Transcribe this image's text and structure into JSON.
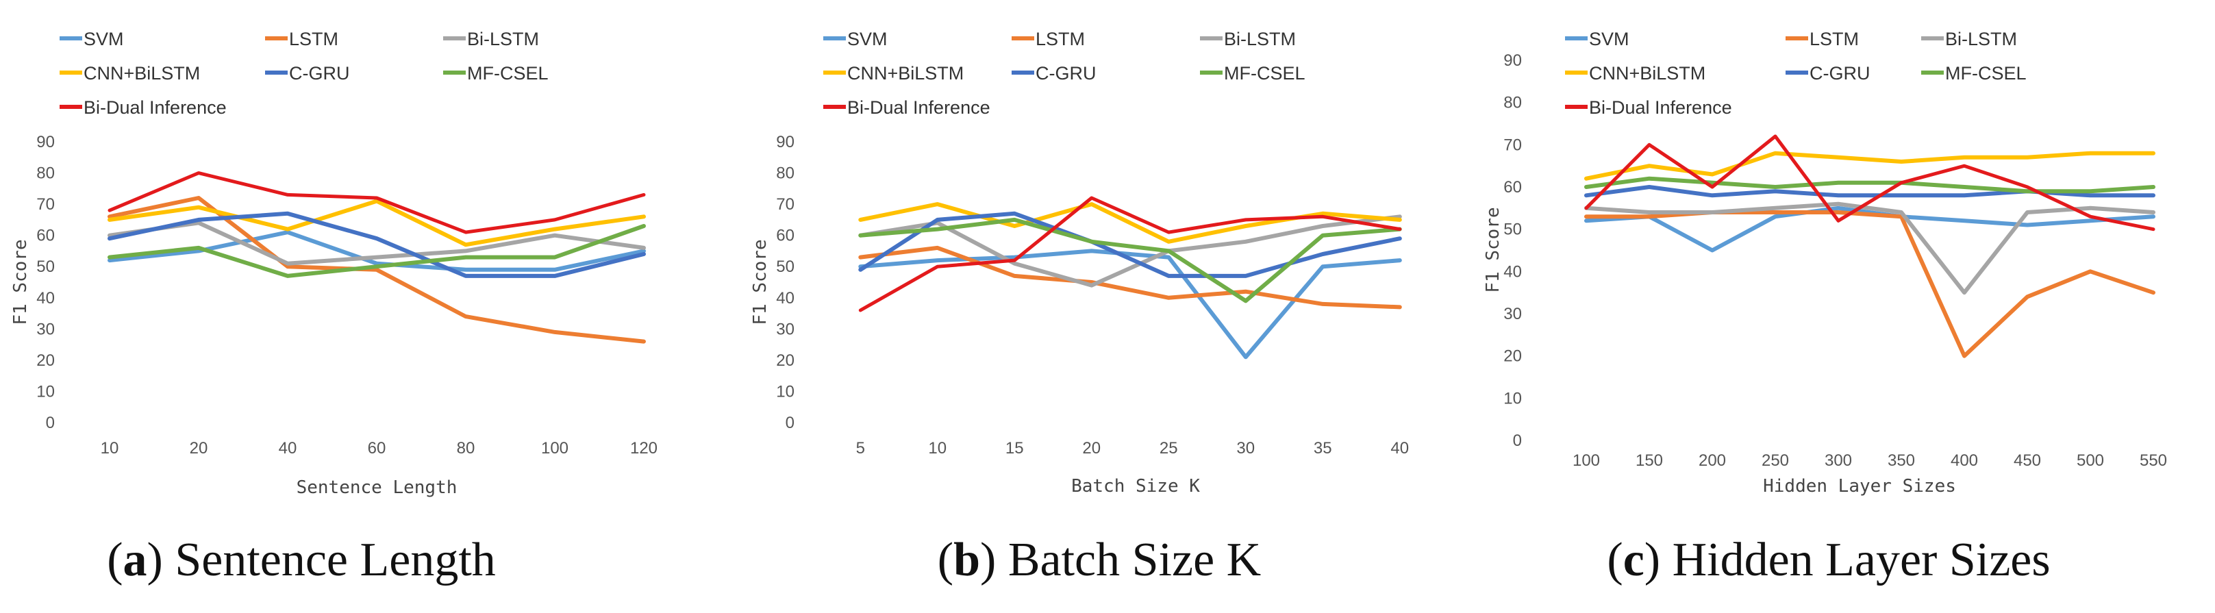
{
  "chart_data": [
    {
      "type": "line",
      "caption_letter": "a",
      "caption_text": "Sentence Length",
      "xlabel": "Sentence Length",
      "ylabel": "F1 Score",
      "ylim": [
        0,
        90
      ],
      "yticks": [
        0,
        10,
        20,
        30,
        40,
        50,
        60,
        70,
        80,
        90
      ],
      "categories": [
        "10",
        "20",
        "40",
        "60",
        "80",
        "100",
        "120"
      ],
      "grid": false,
      "series": [
        {
          "name": "SVM",
          "values": [
            52,
            55,
            61,
            51,
            49,
            49,
            55
          ]
        },
        {
          "name": "LSTM",
          "values": [
            66,
            72,
            50,
            49,
            34,
            29,
            26
          ]
        },
        {
          "name": "Bi-LSTM",
          "values": [
            60,
            64,
            51,
            53,
            55,
            60,
            56
          ]
        },
        {
          "name": "CNN+BiLSTM",
          "values": [
            65,
            69,
            62,
            71,
            57,
            62,
            66
          ]
        },
        {
          "name": "C-GRU",
          "values": [
            59,
            65,
            67,
            59,
            47,
            47,
            54
          ]
        },
        {
          "name": "MF-CSEL",
          "values": [
            53,
            56,
            47,
            50,
            53,
            53,
            63
          ]
        },
        {
          "name": "Bi-Dual Inference",
          "values": [
            68,
            80,
            73,
            72,
            61,
            65,
            73
          ]
        }
      ]
    },
    {
      "type": "line",
      "caption_letter": "b",
      "caption_text": "Batch Size K",
      "xlabel": "Batch Size K",
      "ylabel": "F1 Score",
      "ylim": [
        0,
        90
      ],
      "yticks": [
        0,
        10,
        20,
        30,
        40,
        50,
        60,
        70,
        80,
        90
      ],
      "categories": [
        "5",
        "10",
        "15",
        "20",
        "25",
        "30",
        "35",
        "40"
      ],
      "grid": false,
      "series": [
        {
          "name": "SVM",
          "values": [
            50,
            52,
            53,
            55,
            53,
            21,
            50,
            52
          ]
        },
        {
          "name": "LSTM",
          "values": [
            53,
            56,
            47,
            45,
            40,
            42,
            38,
            37
          ]
        },
        {
          "name": "Bi-LSTM",
          "values": [
            60,
            64,
            51,
            44,
            55,
            58,
            63,
            66
          ]
        },
        {
          "name": "CNN+BiLSTM",
          "values": [
            65,
            70,
            63,
            70,
            58,
            63,
            67,
            65
          ]
        },
        {
          "name": "C-GRU",
          "values": [
            49,
            65,
            67,
            58,
            47,
            47,
            54,
            59
          ]
        },
        {
          "name": "MF-CSEL",
          "values": [
            60,
            62,
            65,
            58,
            55,
            39,
            60,
            62
          ]
        },
        {
          "name": "Bi-Dual Inference",
          "values": [
            36,
            50,
            52,
            72,
            61,
            65,
            66,
            62
          ]
        }
      ]
    },
    {
      "type": "line",
      "caption_letter": "c",
      "caption_text": "Hidden Layer Sizes",
      "xlabel": "Hidden Layer Sizes",
      "ylabel": "F1 Score",
      "ylim": [
        0,
        90
      ],
      "yticks": [
        0,
        10,
        20,
        30,
        40,
        50,
        60,
        70,
        80,
        90
      ],
      "categories": [
        "100",
        "150",
        "200",
        "250",
        "300",
        "350",
        "400",
        "450",
        "500",
        "550"
      ],
      "grid": false,
      "series": [
        {
          "name": "SVM",
          "values": [
            52,
            53,
            45,
            53,
            55,
            53,
            52,
            51,
            52,
            53
          ]
        },
        {
          "name": "LSTM",
          "values": [
            53,
            53,
            54,
            54,
            54,
            53,
            20,
            34,
            40,
            35
          ]
        },
        {
          "name": "Bi-LSTM",
          "values": [
            55,
            54,
            54,
            55,
            56,
            54,
            35,
            54,
            55,
            54
          ]
        },
        {
          "name": "CNN+BiLSTM",
          "values": [
            62,
            65,
            63,
            68,
            67,
            66,
            67,
            67,
            68,
            68
          ]
        },
        {
          "name": "C-GRU",
          "values": [
            58,
            60,
            58,
            59,
            58,
            58,
            58,
            59,
            58,
            58
          ]
        },
        {
          "name": "MF-CSEL",
          "values": [
            60,
            62,
            61,
            60,
            61,
            61,
            60,
            59,
            59,
            60
          ]
        },
        {
          "name": "Bi-Dual Inference",
          "values": [
            55,
            70,
            60,
            72,
            52,
            61,
            65,
            60,
            53,
            50
          ]
        }
      ]
    }
  ],
  "colors": {
    "SVM": "#5b9bd5",
    "LSTM": "#ed7d31",
    "Bi-LSTM": "#a5a5a5",
    "CNN+BiLSTM": "#ffc000",
    "C-GRU": "#4472c4",
    "MF-CSEL": "#70ad47",
    "Bi-Dual Inference": "#e31a1c"
  }
}
